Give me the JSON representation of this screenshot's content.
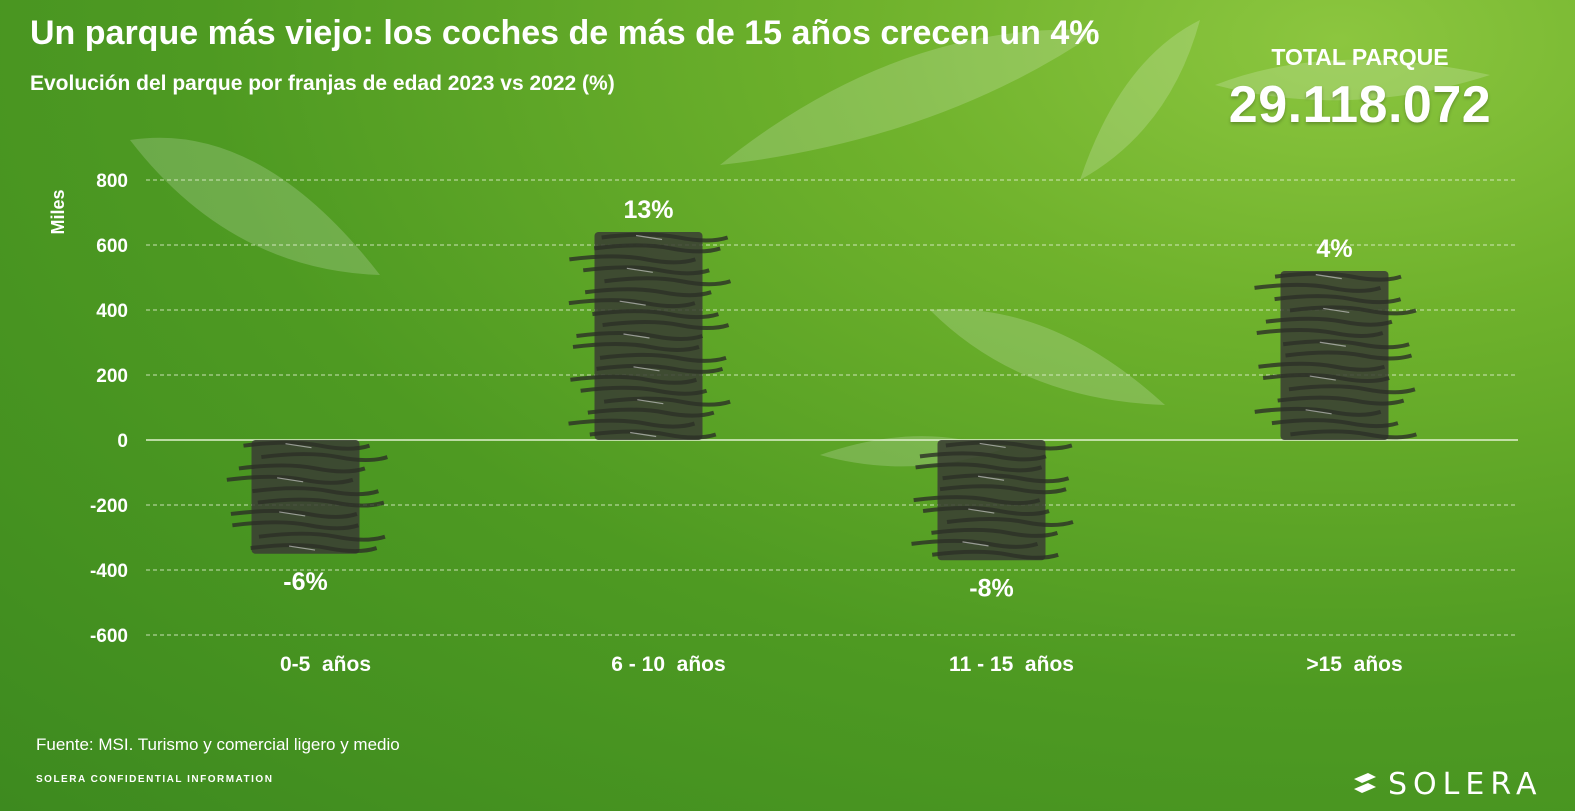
{
  "header": {
    "title": "Un parque más viejo: los coches de más de 15 años crecen un 4%",
    "subtitle": "Evolución del parque por franjas de edad 2023 vs 2022 (%)"
  },
  "total": {
    "label": "TOTAL PARQUE",
    "value": "29.118.072"
  },
  "chart_data": {
    "type": "bar",
    "ylabel": "Miles",
    "xlabel": "",
    "ylim": [
      -600,
      800
    ],
    "yticks": [
      800,
      600,
      400,
      200,
      0,
      -200,
      -400,
      -600
    ],
    "grid": true,
    "categories": [
      "0-5  años",
      "6 - 10  años",
      "11 - 15  años",
      ">15  años"
    ],
    "values": [
      -350,
      640,
      -370,
      520
    ],
    "data_labels": [
      "-6%",
      "13%",
      "-8%",
      "4%"
    ]
  },
  "footer": {
    "source": "Fuente: MSI. Turismo y comercial ligero y medio",
    "confidential": "SOLERA CONFIDENTIAL INFORMATION",
    "brand": "SOLERA"
  },
  "colors": {
    "background_light": "#8cc63f",
    "background_dark": "#3d8a1f",
    "bar_dark": "#3a3f33",
    "gridline": "#e8f5d8",
    "text": "#ffffff"
  }
}
